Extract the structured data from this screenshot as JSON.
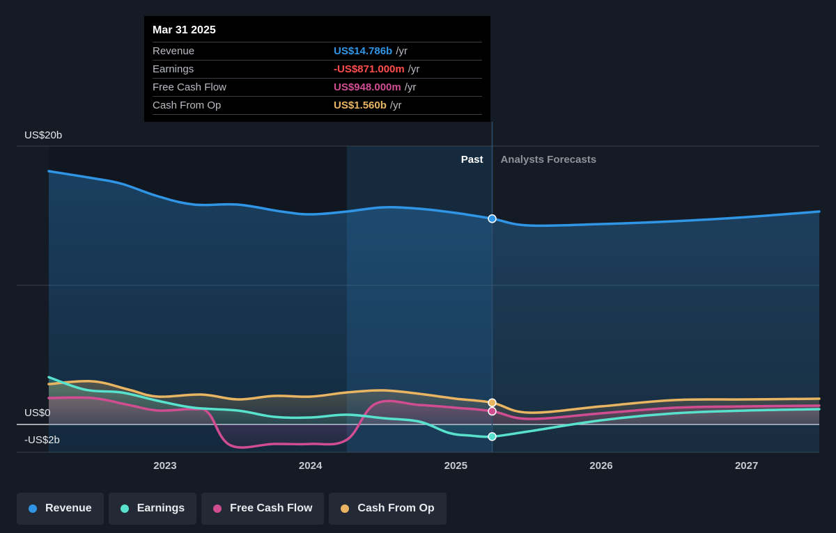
{
  "chart_data": {
    "type": "line",
    "x_unit": "year",
    "y_unit": "US$ billions",
    "ylim": [
      -2,
      20
    ],
    "xlim": [
      2022.2,
      2027.5
    ],
    "y_ticks": [
      {
        "value": 20,
        "label": "US$20b"
      },
      {
        "value": 0,
        "label": "US$0"
      },
      {
        "value": -2,
        "label": "-US$2b"
      }
    ],
    "x_ticks": [
      {
        "value": 2023.0,
        "label": "2023"
      },
      {
        "value": 2024.0,
        "label": "2024"
      },
      {
        "value": 2025.0,
        "label": "2025"
      },
      {
        "value": 2026.0,
        "label": "2026"
      },
      {
        "value": 2027.0,
        "label": "2027"
      }
    ],
    "past_label": "Past",
    "forecast_label": "Analysts Forecasts",
    "highlight_start": 2024.25,
    "divider": 2025.25,
    "series": [
      {
        "name": "Revenue",
        "color": "#2f95e4",
        "filled": true,
        "x": [
          2022.2,
          2022.5,
          2022.7,
          2022.95,
          2023.2,
          2023.5,
          2023.8,
          2024.0,
          2024.25,
          2024.5,
          2024.75,
          2025.0,
          2025.25,
          2025.5,
          2026.0,
          2026.5,
          2027.0,
          2027.5
        ],
        "y": [
          18.2,
          17.7,
          17.3,
          16.4,
          15.8,
          15.8,
          15.3,
          15.1,
          15.3,
          15.6,
          15.5,
          15.2,
          14.786,
          14.3,
          14.4,
          14.6,
          14.9,
          15.3
        ]
      },
      {
        "name": "Earnings",
        "color": "#58e1cc",
        "filled": true,
        "x": [
          2022.2,
          2022.45,
          2022.7,
          2022.95,
          2023.2,
          2023.5,
          2023.75,
          2024.0,
          2024.25,
          2024.5,
          2024.75,
          2024.95,
          2025.1,
          2025.25,
          2025.5,
          2026.0,
          2026.5,
          2027.0,
          2027.5
        ],
        "y": [
          3.4,
          2.5,
          2.3,
          1.7,
          1.2,
          1.0,
          0.55,
          0.5,
          0.7,
          0.45,
          0.2,
          -0.6,
          -0.8,
          -0.871,
          -0.5,
          0.3,
          0.8,
          1.0,
          1.1
        ]
      },
      {
        "name": "Free Cash Flow",
        "color": "#d04d92",
        "filled": true,
        "x": [
          2022.2,
          2022.5,
          2022.75,
          2022.95,
          2023.2,
          2023.3,
          2023.45,
          2023.75,
          2024.0,
          2024.25,
          2024.45,
          2024.75,
          2025.0,
          2025.25,
          2025.5,
          2026.0,
          2026.5,
          2027.0,
          2027.5
        ],
        "y": [
          1.9,
          1.9,
          1.4,
          1.0,
          1.1,
          0.8,
          -1.5,
          -1.4,
          -1.4,
          -1.1,
          1.5,
          1.4,
          1.2,
          0.948,
          0.4,
          0.8,
          1.2,
          1.3,
          1.35
        ]
      },
      {
        "name": "Cash From Op",
        "color": "#e9b562",
        "filled": true,
        "x": [
          2022.2,
          2022.5,
          2022.75,
          2022.95,
          2023.25,
          2023.5,
          2023.75,
          2024.0,
          2024.25,
          2024.5,
          2024.75,
          2025.0,
          2025.25,
          2025.5,
          2026.0,
          2026.5,
          2027.0,
          2027.5
        ],
        "y": [
          2.9,
          3.1,
          2.5,
          2.0,
          2.15,
          1.8,
          2.05,
          2.0,
          2.3,
          2.45,
          2.2,
          1.85,
          1.56,
          0.85,
          1.3,
          1.75,
          1.8,
          1.85
        ]
      }
    ],
    "markers": [
      {
        "x": 2025.25,
        "y": 14.786,
        "color": "#2f95e4"
      },
      {
        "x": 2025.25,
        "y": 1.56,
        "color": "#e9b562"
      },
      {
        "x": 2025.25,
        "y": 0.948,
        "color": "#d04d92"
      },
      {
        "x": 2025.25,
        "y": -0.871,
        "color": "#58e1cc"
      }
    ]
  },
  "tooltip": {
    "date": "Mar 31 2025",
    "rows": [
      {
        "label": "Revenue",
        "value": "US$14.786b",
        "unit": "/yr",
        "color": "#2f95e4"
      },
      {
        "label": "Earnings",
        "value": "-US$871.000m",
        "unit": "/yr",
        "color": "#ff4d4d"
      },
      {
        "label": "Free Cash Flow",
        "value": "US$948.000m",
        "unit": "/yr",
        "color": "#d04d92"
      },
      {
        "label": "Cash From Op",
        "value": "US$1.560b",
        "unit": "/yr",
        "color": "#e9b562"
      }
    ]
  },
  "legend": [
    {
      "label": "Revenue",
      "color": "#2f95e4"
    },
    {
      "label": "Earnings",
      "color": "#58e1cc"
    },
    {
      "label": "Free Cash Flow",
      "color": "#d04d92"
    },
    {
      "label": "Cash From Op",
      "color": "#e9b562"
    }
  ]
}
